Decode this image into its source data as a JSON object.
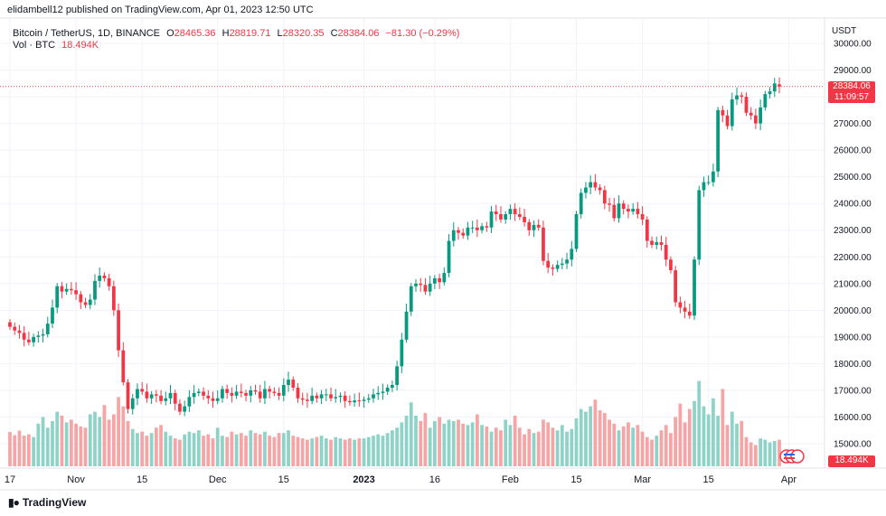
{
  "header": {
    "publisher": "elidambell12 published on TradingView.com, Apr 01, 2023 12:50 UTC",
    "symbol": "Bitcoin / TetherUS, 1D, BINANCE",
    "open_label": "O",
    "open": "28465.36",
    "high_label": "H",
    "high": "28819.71",
    "low_label": "L",
    "low": "28320.35",
    "close_label": "C",
    "close": "28384.06",
    "change": "−81.30 (−0.29%)",
    "vol_label": "Vol · BTC",
    "vol_value": "18.494K"
  },
  "price_axis": {
    "unit": "USDT",
    "current_price": "28384.06",
    "countdown": "11:09:57",
    "current_volume": "18.494K"
  },
  "branding": {
    "name": "TradingView"
  },
  "colors": {
    "up": "#089981",
    "down": "#f23645",
    "up_vol": "#8fd3c8",
    "down_vol": "#f5a5a5",
    "grid": "#f0f3fa"
  },
  "chart_data": {
    "type": "candlestick",
    "title": "Bitcoin / TetherUS, 1D, BINANCE",
    "ylabel": "USDT",
    "ylim": [
      14600,
      30500
    ],
    "y_ticks": [
      "15000.00",
      "16000.00",
      "17000.00",
      "18000.00",
      "19000.00",
      "20000.00",
      "21000.00",
      "22000.00",
      "23000.00",
      "24000.00",
      "25000.00",
      "26000.00",
      "27000.00",
      "28000.00",
      "29000.00",
      "30000.00"
    ],
    "x_ticks": [
      {
        "label": "17",
        "index": 0
      },
      {
        "label": "Nov",
        "index": 14
      },
      {
        "label": "15",
        "index": 28
      },
      {
        "label": "Dec",
        "index": 44
      },
      {
        "label": "15",
        "index": 58
      },
      {
        "label": "2023",
        "index": 75
      },
      {
        "label": "16",
        "index": 90
      },
      {
        "label": "Feb",
        "index": 106
      },
      {
        "label": "15",
        "index": 120
      },
      {
        "label": "Mar",
        "index": 134
      },
      {
        "label": "15",
        "index": 148
      },
      {
        "label": "Apr",
        "index": 165
      }
    ],
    "close": [
      19380,
      19240,
      19150,
      18900,
      18800,
      19000,
      19050,
      19100,
      19500,
      20100,
      20900,
      20700,
      20800,
      20750,
      20600,
      20300,
      20200,
      20400,
      21100,
      21300,
      21200,
      20900,
      20000,
      18500,
      17300,
      16300,
      16700,
      17050,
      16950,
      16700,
      16850,
      16800,
      16600,
      16700,
      16900,
      16500,
      16200,
      16400,
      16750,
      16900,
      16950,
      16800,
      16700,
      16600,
      16700,
      17050,
      16900,
      16800,
      16950,
      16900,
      16800,
      17000,
      16950,
      16700,
      17050,
      16950,
      16900,
      16800,
      17200,
      17400,
      17100,
      16700,
      16650,
      16600,
      16800,
      16700,
      16850,
      16850,
      16700,
      16750,
      16800,
      16600,
      16550,
      16620,
      16600,
      16650,
      16700,
      16850,
      16900,
      16950,
      17100,
      17200,
      17900,
      18900,
      19950,
      20900,
      21000,
      20950,
      20700,
      21000,
      21200,
      21050,
      21400,
      22600,
      23000,
      22900,
      22800,
      23100,
      23100,
      23000,
      23150,
      23100,
      23700,
      23600,
      23400,
      23600,
      23800,
      23600,
      23500,
      23300,
      23000,
      23200,
      23100,
      21850,
      21600,
      21550,
      21700,
      21750,
      21900,
      22300,
      23600,
      24400,
      24600,
      24800,
      24600,
      24500,
      24000,
      23950,
      23450,
      24000,
      23800,
      23700,
      23800,
      23600,
      23400,
      22600,
      22450,
      22550,
      22450,
      21900,
      21500,
      20300,
      20100,
      19950,
      19800,
      21900,
      24500,
      24800,
      24800,
      25200,
      27500,
      27300,
      26900,
      27900,
      28050,
      28000,
      27400,
      27300,
      27000,
      27600,
      28100,
      28200,
      28500,
      28384
    ],
    "open": [
      19550,
      19380,
      19240,
      19150,
      18900,
      18800,
      19000,
      19050,
      19100,
      19500,
      20100,
      20900,
      20700,
      20800,
      20750,
      20600,
      20300,
      20200,
      20400,
      21100,
      21300,
      21200,
      20900,
      20000,
      18500,
      17300,
      16300,
      16700,
      17050,
      16950,
      16700,
      16850,
      16800,
      16600,
      16700,
      16900,
      16500,
      16200,
      16400,
      16750,
      16900,
      16950,
      16800,
      16700,
      16600,
      16700,
      17050,
      16900,
      16800,
      16950,
      16900,
      16800,
      17000,
      16950,
      16700,
      17050,
      16950,
      16900,
      16800,
      17200,
      17400,
      17100,
      16700,
      16650,
      16600,
      16800,
      16700,
      16850,
      16850,
      16700,
      16750,
      16800,
      16600,
      16550,
      16620,
      16600,
      16650,
      16700,
      16850,
      16900,
      16950,
      17100,
      17200,
      17900,
      18900,
      19950,
      20900,
      21000,
      20950,
      20700,
      21000,
      21200,
      21050,
      21400,
      22600,
      23000,
      22900,
      22800,
      23100,
      23100,
      23000,
      23150,
      23100,
      23700,
      23600,
      23400,
      23600,
      23800,
      23600,
      23500,
      23300,
      23000,
      23200,
      23100,
      21850,
      21600,
      21550,
      21700,
      21750,
      21900,
      22300,
      23600,
      24400,
      24600,
      24800,
      24600,
      24500,
      24000,
      23950,
      23450,
      24000,
      23800,
      23700,
      23800,
      23600,
      23400,
      22600,
      22450,
      22550,
      22450,
      21900,
      21500,
      20300,
      20100,
      19950,
      19800,
      21900,
      24500,
      24800,
      24800,
      25200,
      27500,
      27300,
      26900,
      27900,
      28050,
      28000,
      27400,
      27300,
      27000,
      27600,
      28100,
      28200,
      28465
    ],
    "volume": [
      15440,
      15320,
      15490,
      15300,
      15350,
      15250,
      15750,
      16000,
      15600,
      15850,
      16200,
      16050,
      15800,
      15900,
      15750,
      15650,
      15600,
      16100,
      16200,
      16000,
      16450,
      15900,
      16100,
      16750,
      16400,
      15850,
      15550,
      15400,
      15450,
      15300,
      15400,
      15600,
      15700,
      15450,
      15300,
      15200,
      15150,
      15350,
      15450,
      15400,
      15500,
      15300,
      15350,
      15200,
      15600,
      15300,
      15250,
      15450,
      15350,
      15400,
      15300,
      15500,
      15400,
      15350,
      15450,
      15300,
      15250,
      15400,
      15400,
      15500,
      15300,
      15250,
      15200,
      15150,
      15200,
      15250,
      15300,
      15200,
      15150,
      15250,
      15200,
      15150,
      15200,
      15150,
      15200,
      15200,
      15250,
      15300,
      15350,
      15300,
      15400,
      15500,
      15600,
      15800,
      16050,
      16550,
      16050,
      15850,
      16150,
      15600,
      15850,
      16000,
      15750,
      15900,
      15850,
      15900,
      15750,
      15700,
      15800,
      16100,
      15700,
      15650,
      15450,
      15600,
      15500,
      15900,
      15700,
      16050,
      15600,
      15350,
      15550,
      15400,
      15450,
      15900,
      15800,
      15600,
      15500,
      15700,
      15450,
      15550,
      15950,
      16300,
      16200,
      16400,
      16650,
      16250,
      16150,
      15900,
      15750,
      15500,
      15650,
      15800,
      15600,
      15700,
      15450,
      15250,
      15150,
      15300,
      15500,
      15700,
      15400,
      16000,
      16500,
      15800,
      16300,
      16600,
      17350,
      16400,
      16100,
      16700,
      16050,
      17050,
      15700,
      16200,
      15750,
      15850,
      15250,
      15050,
      14950,
      15200,
      15150,
      15050,
      15100,
      15150
    ]
  }
}
